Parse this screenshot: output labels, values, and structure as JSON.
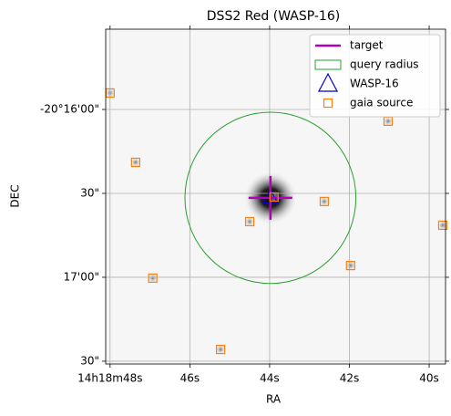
{
  "chart_data": {
    "type": "scatter",
    "title": "DSS2 Red (WASP-16)",
    "xlabel": "RA",
    "ylabel": "DEC",
    "xlim": [
      48.11,
      39.59
    ],
    "ylim": [
      -73051,
      -72931.3
    ],
    "xticks": [
      {
        "value": 48,
        "label": "14h18m48s"
      },
      {
        "value": 46,
        "label": "46s"
      },
      {
        "value": 44,
        "label": "44s"
      },
      {
        "value": 42,
        "label": "42s"
      },
      {
        "value": 40,
        "label": "40s"
      }
    ],
    "yticks": [
      {
        "value": -72960,
        "label": "-20°16'00\""
      },
      {
        "value": -72990,
        "label": "30\""
      },
      {
        "value": -73020,
        "label": "17'00\""
      },
      {
        "value": -73050,
        "label": "30\""
      }
    ],
    "grid": true,
    "legend": "upper right",
    "series": [
      {
        "name": "target",
        "color": "#b000b8",
        "marker": "plus",
        "x": [
          43.98
        ],
        "y": [
          -72991.6
        ]
      },
      {
        "name": "query radius",
        "color": "#2ca02c",
        "marker": "circle",
        "x": [
          43.98
        ],
        "y": [
          -72991.6
        ],
        "radius": [
          30.6
        ]
      },
      {
        "name": "WASP-16",
        "color": "#0000cc",
        "marker": "triangle",
        "x": [
          43.98
        ],
        "y": [
          -72991.6
        ]
      },
      {
        "name": "gaia source",
        "color": "#ff7f0e",
        "marker": "square",
        "x": [
          48.0,
          47.36,
          46.93,
          45.23,
          44.5,
          43.89,
          42.63,
          41.97,
          41.03,
          39.66
        ],
        "y": [
          -72954.1,
          -72978.9,
          -73020.3,
          -73045.8,
          -73000.1,
          -72991.3,
          -72992.9,
          -73015.8,
          -72964.2,
          -73001.4
        ]
      }
    ]
  }
}
